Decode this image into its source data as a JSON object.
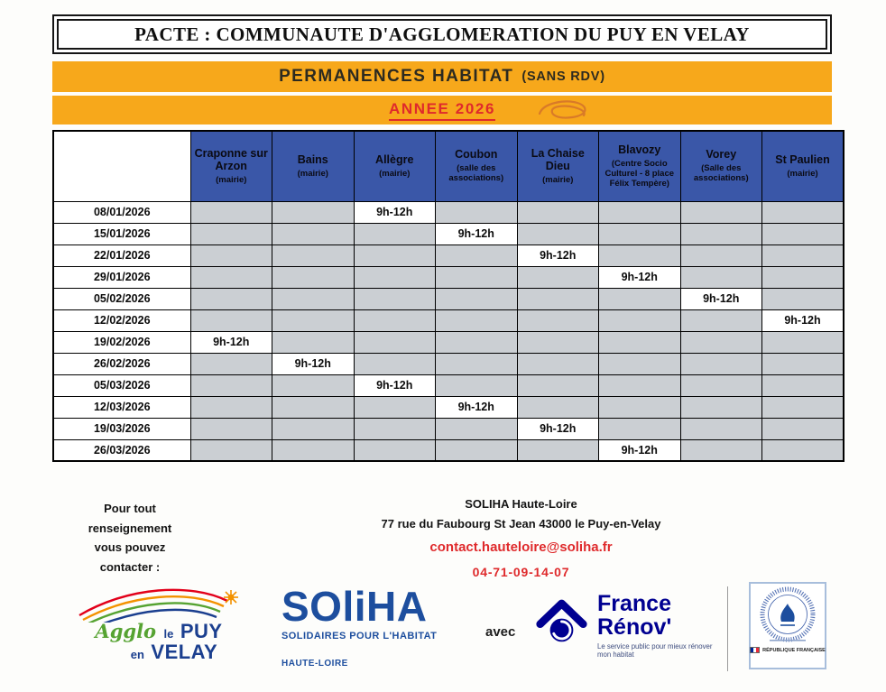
{
  "title": "PACTE : COMMUNAUTE D'AGGLOMERATION DU PUY EN VELAY",
  "banner": {
    "main": "PERMANENCES HABITAT",
    "sub": "(SANS RDV)",
    "year": "ANNEE 2026"
  },
  "schedule": {
    "time_label": "9h-12h",
    "columns": [
      {
        "name": "Craponne sur Arzon",
        "detail": "(mairie)"
      },
      {
        "name": "Bains",
        "detail": "(mairie)"
      },
      {
        "name": "Allègre",
        "detail": "(mairie)"
      },
      {
        "name": "Coubon",
        "detail": "(salle des associations)"
      },
      {
        "name": "La Chaise Dieu",
        "detail": "(mairie)"
      },
      {
        "name": "Blavozy",
        "detail": "(Centre Socio Culturel - 8 place Félix Tempère)"
      },
      {
        "name": "Vorey",
        "detail": "(Salle des associations)"
      },
      {
        "name": "St Paulien",
        "detail": "(mairie)"
      }
    ],
    "rows": [
      {
        "date": "08/01/2026",
        "active_col": 2
      },
      {
        "date": "15/01/2026",
        "active_col": 3
      },
      {
        "date": "22/01/2026",
        "active_col": 4
      },
      {
        "date": "29/01/2026",
        "active_col": 5
      },
      {
        "date": "05/02/2026",
        "active_col": 6
      },
      {
        "date": "12/02/2026",
        "active_col": 7
      },
      {
        "date": "19/02/2026",
        "active_col": 0
      },
      {
        "date": "26/02/2026",
        "active_col": 1
      },
      {
        "date": "05/03/2026",
        "active_col": 2
      },
      {
        "date": "12/03/2026",
        "active_col": 3
      },
      {
        "date": "19/03/2026",
        "active_col": 4
      },
      {
        "date": "26/03/2026",
        "active_col": 5
      }
    ]
  },
  "contact": {
    "left_lines": [
      "Pour tout",
      "renseignement",
      "vous pouvez",
      "contacter :"
    ],
    "org": "SOLIHA Haute-Loire",
    "address": "77 rue du Faubourg St Jean 43000 le Puy-en-Velay",
    "email": "contact.hauteloire@soliha.fr",
    "phone": "04-71-09-14-07"
  },
  "logos": {
    "agglo": {
      "script": "Agglo",
      "small1": "le",
      "big1": "PUY",
      "small2": "en",
      "big2": "VELAY"
    },
    "soliha": {
      "word": "SOliHA",
      "tagline": "SOLIDAIRES POUR L'HABITAT",
      "department": "HAUTE-LOIRE"
    },
    "avec": "avec",
    "france_renov": {
      "line1": "France",
      "line2": "Rénov'",
      "tagline": "Le service public pour mieux rénover mon habitat"
    },
    "stamp": {
      "caption": "RÉPUBLIQUE FRANÇAISE"
    }
  },
  "colors": {
    "banner_orange": "#F7A81B",
    "header_blue": "#3A57A8",
    "cell_gray": "#CBCFD3",
    "accent_red": "#DF2A2C",
    "gov_blue": "#000091",
    "soliha_blue": "#1D4E9E"
  }
}
